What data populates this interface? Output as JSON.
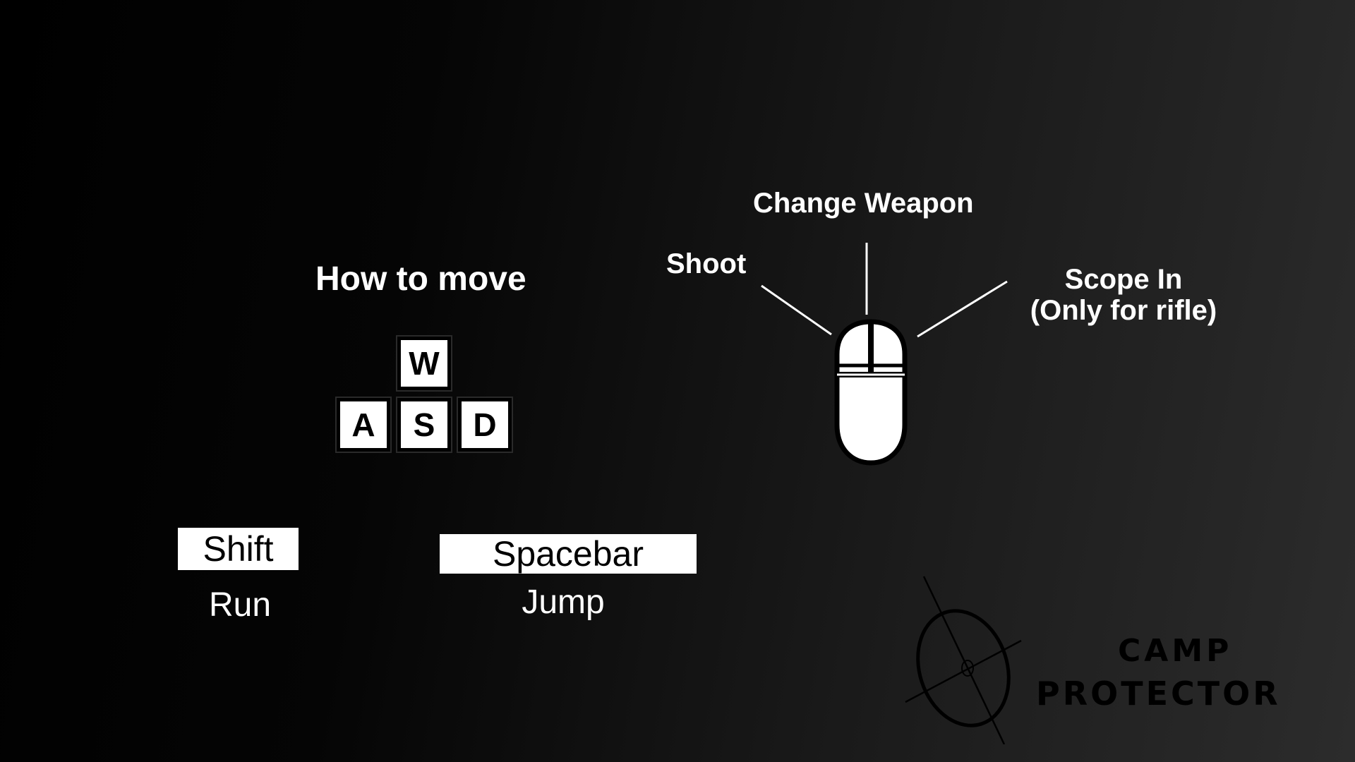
{
  "movement": {
    "title": "How to move",
    "keys": {
      "w": "W",
      "a": "A",
      "s": "S",
      "d": "D"
    }
  },
  "actions": {
    "run": {
      "key": "Shift",
      "label": "Run"
    },
    "jump": {
      "key": "Spacebar",
      "label": "Jump"
    }
  },
  "mouse": {
    "shoot": "Shoot",
    "change_weapon": "Change Weapon",
    "scope_line1": "Scope In",
    "scope_line2": "(Only for rifle)"
  },
  "logo": {
    "line1": "CAMP",
    "line2": "PROTECTOR"
  },
  "colors": {
    "text": "#ffffff",
    "key_fill": "#ffffff",
    "key_text": "#000000",
    "logo": "#000000"
  },
  "icons": [
    "mouse-icon",
    "crosshair-icon"
  ]
}
